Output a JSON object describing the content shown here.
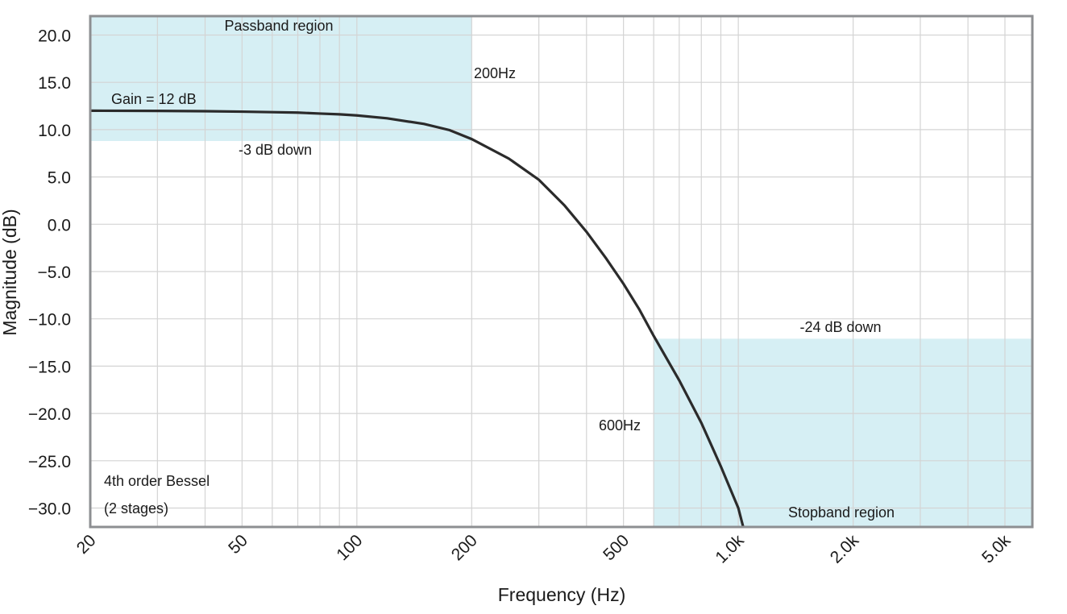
{
  "chart_data": {
    "type": "line",
    "xscale": "log",
    "xlabel": "Frequency (Hz)",
    "ylabel": "Magnitude (dB)",
    "xlim": [
      20,
      5900
    ],
    "ylim": [
      -32,
      22
    ],
    "x_ticks": [
      {
        "value": 20,
        "label": "20"
      },
      {
        "value": 50,
        "label": "50"
      },
      {
        "value": 100,
        "label": "100"
      },
      {
        "value": 200,
        "label": "200"
      },
      {
        "value": 500,
        "label": "500"
      },
      {
        "value": 1000,
        "label": "1.0k"
      },
      {
        "value": 2000,
        "label": "2.0k"
      },
      {
        "value": 5000,
        "label": "5.0k"
      }
    ],
    "y_ticks": [
      {
        "value": 20,
        "label": "20.0"
      },
      {
        "value": 15,
        "label": "15.0"
      },
      {
        "value": 10,
        "label": "10.0"
      },
      {
        "value": 5,
        "label": "5.0"
      },
      {
        "value": 0,
        "label": "0.0"
      },
      {
        "value": -5,
        "label": "−5.0"
      },
      {
        "value": -10,
        "label": "−10.0"
      },
      {
        "value": -15,
        "label": "−15.0"
      },
      {
        "value": -20,
        "label": "−20.0"
      },
      {
        "value": -25,
        "label": "−25.0"
      },
      {
        "value": -30,
        "label": "−30.0"
      }
    ],
    "x_gridlines": [
      20,
      30,
      40,
      50,
      60,
      70,
      80,
      90,
      100,
      200,
      300,
      400,
      500,
      600,
      700,
      800,
      900,
      1000,
      2000,
      3000,
      4000,
      5000
    ],
    "y_gridlines": [
      20,
      15,
      10,
      5,
      0,
      -5,
      -10,
      -15,
      -20,
      -25,
      -30
    ],
    "series": [
      {
        "name": "4th order Bessel response",
        "color": "#2b2b2b",
        "x": [
          20,
          30,
          40,
          50,
          60,
          70,
          80,
          90,
          100,
          120,
          150,
          175,
          200,
          250,
          300,
          350,
          400,
          450,
          500,
          550,
          600,
          700,
          800,
          900,
          1000,
          1030
        ],
        "y": [
          12.0,
          11.98,
          11.95,
          11.9,
          11.85,
          11.8,
          11.7,
          11.62,
          11.5,
          11.2,
          10.6,
          9.95,
          9.0,
          6.95,
          4.7,
          2.0,
          -0.8,
          -3.6,
          -6.3,
          -9.0,
          -11.8,
          -16.5,
          -21.0,
          -25.6,
          -30.0,
          -32.0
        ]
      }
    ],
    "regions": [
      {
        "name": "passband",
        "x0": 20,
        "x1": 200,
        "y0": 8.8,
        "y1": 22
      },
      {
        "name": "stopband",
        "x0": 600,
        "x1": 5900,
        "y0": -32,
        "y1": -12.1
      }
    ],
    "region_color": "#d6eff4",
    "annotations": {
      "passband_region": "Passband region",
      "gain": "Gain = 12 dB",
      "minus3db": "-3 dB down",
      "f200": "200Hz",
      "f600": "600Hz",
      "minus24db": "-24 dB down",
      "stopband_region": "Stopband region",
      "bessel_line1": "4th order Bessel",
      "bessel_line2": "(2 stages)"
    }
  }
}
